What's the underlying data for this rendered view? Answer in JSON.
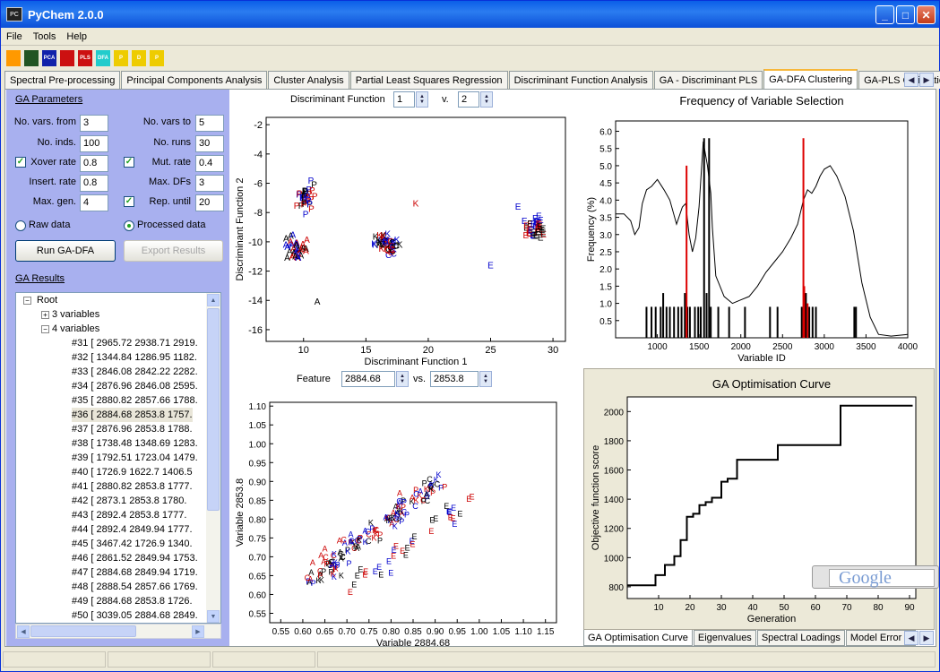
{
  "window": {
    "title": "PyChem 2.0.0",
    "icon": "pychem-icon"
  },
  "menu": [
    "File",
    "Tools",
    "Help"
  ],
  "toolbar_icons": [
    {
      "name": "flask-icon",
      "color": "#ff9900",
      "label": ""
    },
    {
      "name": "spectra-icon",
      "color": "#225522",
      "label": ""
    },
    {
      "name": "pca-icon",
      "color": "#1122aa",
      "label": "PCA"
    },
    {
      "name": "cluster-icon",
      "color": "#cc1111",
      "label": ""
    },
    {
      "name": "pls-icon",
      "color": "#cc1111",
      "label": "PLS"
    },
    {
      "name": "dfa-icon",
      "color": "#22cccc",
      "label": "DFA"
    },
    {
      "name": "ga-pca-icon",
      "color": "#eecc00",
      "label": "P"
    },
    {
      "name": "ga-dfa-icon",
      "color": "#eecc00",
      "label": "D"
    },
    {
      "name": "ga-pls-icon",
      "color": "#eecc00",
      "label": "P"
    }
  ],
  "tabs": [
    "Spectral Pre-processing",
    "Principal Components Analysis",
    "Cluster Analysis",
    "Partial Least Squares Regression",
    "Discriminant Function Analysis",
    "GA - Discriminant PLS",
    "GA-DFA Clustering",
    "GA-PLS Calibration"
  ],
  "active_tab": "GA-DFA Clustering",
  "ga_params": {
    "heading": "GA Parameters",
    "no_vars_from_label": "No. vars. from",
    "no_vars_from": "3",
    "no_vars_to_label": "No. vars to",
    "no_vars_to": "5",
    "no_inds_label": "No. inds.",
    "no_inds": "100",
    "no_runs_label": "No. runs",
    "no_runs": "30",
    "xover_label": "Xover rate",
    "xover": "0.8",
    "mut_label": "Mut. rate",
    "mut": "0.4",
    "insert_label": "Insert. rate",
    "insert": "0.8",
    "maxdfs_label": "Max. DFs",
    "maxdfs": "3",
    "maxgen_label": "Max. gen.",
    "maxgen": "4",
    "repuntil_label": "Rep. until",
    "repuntil": "20",
    "raw_label": "Raw data",
    "processed_label": "Processed data",
    "run_label": "Run GA-DFA",
    "export_label": "Export Results"
  },
  "ga_results": {
    "heading": "GA Results",
    "root": "Root",
    "node3": "3 variables",
    "node4": "4 variables",
    "items": [
      "#31 [ 2965.72  2938.71  2919.",
      "#32 [ 1344.84  1286.95  1182.",
      "#33 [ 2846.08  2842.22  2282.",
      "#34 [ 2876.96  2846.08  2595.",
      "#35 [ 2880.82  2857.66  1788.",
      "#36 [ 2884.68  2853.8   1757.",
      "#37 [ 2876.96  2853.8   1788.",
      "#38 [ 1738.48  1348.69  1283.",
      "#39 [ 1792.51  1723.04  1479.",
      "#40 [ 1726.9   1622.7   1406.5",
      "#41 [ 2880.82  2853.8   1777.",
      "#42 [ 2873.1   2853.8   1780.",
      "#43 [ 2892.4   2853.8   1777.",
      "#44 [ 2892.4   2849.94  1777.",
      "#45 [ 3467.42  1726.9   1340.",
      "#46 [ 2861.52  2849.94  1753.",
      "#47 [ 2884.68  2849.94  1719.",
      "#48 [ 2888.54  2857.66  1769.",
      "#49 [ 2884.68  2853.8   1726.",
      "#50 [ 3039.05  2884.68  2849."
    ],
    "selected_index": 5
  },
  "df_controls": {
    "label": "Discriminant Function",
    "v_label": "v.",
    "df_a": "1",
    "df_b": "2"
  },
  "feature_controls": {
    "label": "Feature",
    "vs_label": "vs.",
    "a": "2884.68",
    "b": "2853.8"
  },
  "bottom_tabs": [
    "GA Optimisation Curve",
    "Eigenvalues",
    "Spectral Loadings",
    "Model Error C"
  ],
  "google_text": "Google",
  "chart_data": [
    {
      "type": "scatter",
      "id": "dfa",
      "xlabel": "Discriminant Function 1",
      "ylabel": "Discriminant Function 2",
      "xlim": [
        7,
        31
      ],
      "ylim": [
        -16.8,
        -1.5
      ],
      "xticks": [
        10,
        15,
        20,
        25,
        30
      ],
      "yticks": [
        -2,
        -4,
        -6,
        -8,
        -10,
        -12,
        -14,
        -16
      ],
      "clusters": [
        {
          "label": "P",
          "center": [
            10.3,
            -7.2
          ],
          "spread": [
            1.1,
            1.4
          ],
          "n": 32
        },
        {
          "label": "A",
          "center": [
            9.6,
            -10.6
          ],
          "spread": [
            1.4,
            1.2
          ],
          "n": 36
        },
        {
          "label": "K",
          "center": [
            16.6,
            -10.1
          ],
          "spread": [
            1.4,
            0.8
          ],
          "n": 26
        },
        {
          "label": "C",
          "center": [
            16.9,
            -10.6
          ],
          "spread": [
            1.3,
            0.7
          ],
          "n": 24
        },
        {
          "label": "E",
          "center": [
            28.6,
            -9.3
          ],
          "spread": [
            1.1,
            1.1
          ],
          "n": 36
        }
      ],
      "extra_points": [
        {
          "label": "E",
          "x": 25,
          "y": -11.8
        },
        {
          "label": "K",
          "x": 19,
          "y": -7.6
        },
        {
          "label": "A",
          "x": 11.1,
          "y": -14.3
        },
        {
          "label": "E",
          "x": 27.2,
          "y": -7.8
        }
      ]
    },
    {
      "type": "scatter",
      "id": "features",
      "xlabel": "Variable 2884.68",
      "ylabel": "Variable 2853.8",
      "xlim": [
        0.525,
        1.175
      ],
      "ylim": [
        0.525,
        1.11
      ],
      "xticks": [
        0.55,
        0.6,
        0.65,
        0.7,
        0.75,
        0.8,
        0.85,
        0.9,
        0.95,
        1.0,
        1.05,
        1.1,
        1.15
      ],
      "yticks": [
        0.55,
        0.6,
        0.65,
        0.7,
        0.75,
        0.8,
        0.85,
        0.9,
        0.95,
        1.0,
        1.05,
        1.1
      ]
    },
    {
      "type": "line",
      "id": "frequency",
      "title": "Frequency of Variable Selection",
      "xlabel": "Variable ID",
      "ylabel": "Frequency (%)",
      "xlim": [
        500,
        4000
      ],
      "ylim": [
        0,
        6.3
      ],
      "xticks": [
        1000,
        1500,
        2000,
        2500,
        3000,
        3500,
        4000
      ],
      "yticks": [
        0.5,
        1.0,
        1.5,
        2.0,
        2.5,
        3.0,
        3.5,
        4.0,
        4.5,
        5.0,
        5.5,
        6.0
      ],
      "spectrum": [
        [
          500,
          3.6
        ],
        [
          600,
          3.6
        ],
        [
          680,
          3.4
        ],
        [
          730,
          3.0
        ],
        [
          780,
          3.2
        ],
        [
          820,
          3.9
        ],
        [
          870,
          4.3
        ],
        [
          930,
          4.4
        ],
        [
          1000,
          4.6
        ],
        [
          1080,
          4.3
        ],
        [
          1150,
          4.0
        ],
        [
          1230,
          3.3
        ],
        [
          1300,
          3.8
        ],
        [
          1340,
          3.9
        ],
        [
          1380,
          3.0
        ],
        [
          1420,
          2.5
        ],
        [
          1460,
          2.9
        ],
        [
          1500,
          3.8
        ],
        [
          1550,
          5.7
        ],
        [
          1600,
          5.0
        ],
        [
          1640,
          4.2
        ],
        [
          1660,
          3.2
        ],
        [
          1700,
          1.8
        ],
        [
          1800,
          1.2
        ],
        [
          1900,
          1.0
        ],
        [
          2000,
          1.1
        ],
        [
          2100,
          1.2
        ],
        [
          2200,
          1.5
        ],
        [
          2300,
          1.9
        ],
        [
          2400,
          2.2
        ],
        [
          2500,
          2.5
        ],
        [
          2600,
          2.9
        ],
        [
          2680,
          3.3
        ],
        [
          2750,
          4.0
        ],
        [
          2800,
          4.3
        ],
        [
          2850,
          4.2
        ],
        [
          2900,
          4.4
        ],
        [
          2950,
          4.7
        ],
        [
          3000,
          4.9
        ],
        [
          3070,
          5.0
        ],
        [
          3150,
          4.7
        ],
        [
          3250,
          4.1
        ],
        [
          3350,
          3.1
        ],
        [
          3450,
          1.6
        ],
        [
          3550,
          0.6
        ],
        [
          3650,
          0.1
        ],
        [
          3800,
          0.05
        ],
        [
          4000,
          0.1
        ]
      ],
      "red_bars": [
        [
          1350,
          5.0
        ],
        [
          2750,
          5.8
        ],
        [
          2760,
          1.5
        ],
        [
          2800,
          1.0
        ]
      ],
      "black_bars": [
        [
          870,
          0.9
        ],
        [
          930,
          0.9
        ],
        [
          980,
          0.9
        ],
        [
          1040,
          0.9
        ],
        [
          1070,
          1.3
        ],
        [
          1110,
          0.9
        ],
        [
          1150,
          0.9
        ],
        [
          1200,
          0.9
        ],
        [
          1250,
          0.9
        ],
        [
          1290,
          0.9
        ],
        [
          1330,
          1.3
        ],
        [
          1360,
          0.9
        ],
        [
          1390,
          0.9
        ],
        [
          1450,
          0.9
        ],
        [
          1490,
          0.9
        ],
        [
          1520,
          0.9
        ],
        [
          1560,
          5.8
        ],
        [
          1590,
          1.3
        ],
        [
          1620,
          5.8
        ],
        [
          1640,
          0.9
        ],
        [
          1730,
          0.9
        ],
        [
          1860,
          0.9
        ],
        [
          2050,
          0.9
        ],
        [
          2350,
          0.9
        ],
        [
          2440,
          0.9
        ],
        [
          2730,
          0.9
        ],
        [
          2780,
          1.3
        ],
        [
          2820,
          0.9
        ],
        [
          2860,
          0.9
        ],
        [
          2900,
          0.9
        ],
        [
          3360,
          0.9
        ],
        [
          3380,
          0.9
        ]
      ]
    },
    {
      "type": "line",
      "id": "ga_curve",
      "title": "GA Optimisation Curve",
      "xlabel": "Generation",
      "ylabel": "Objective function score",
      "xlim": [
        0,
        92
      ],
      "ylim": [
        720,
        2100
      ],
      "xticks": [
        10,
        20,
        30,
        40,
        50,
        60,
        70,
        80,
        90
      ],
      "yticks": [
        800,
        1000,
        1200,
        1400,
        1600,
        1800,
        2000
      ],
      "points": [
        [
          0,
          810
        ],
        [
          9,
          810
        ],
        [
          9,
          880
        ],
        [
          12,
          880
        ],
        [
          12,
          950
        ],
        [
          15,
          950
        ],
        [
          15,
          1010
        ],
        [
          17,
          1010
        ],
        [
          17,
          1120
        ],
        [
          19,
          1120
        ],
        [
          19,
          1280
        ],
        [
          21,
          1280
        ],
        [
          21,
          1300
        ],
        [
          23,
          1300
        ],
        [
          23,
          1360
        ],
        [
          25,
          1360
        ],
        [
          25,
          1380
        ],
        [
          27,
          1380
        ],
        [
          27,
          1410
        ],
        [
          30,
          1410
        ],
        [
          30,
          1520
        ],
        [
          32,
          1520
        ],
        [
          32,
          1540
        ],
        [
          35,
          1540
        ],
        [
          35,
          1670
        ],
        [
          48,
          1670
        ],
        [
          48,
          1770
        ],
        [
          68,
          1770
        ],
        [
          68,
          2040
        ],
        [
          91,
          2040
        ]
      ]
    }
  ]
}
